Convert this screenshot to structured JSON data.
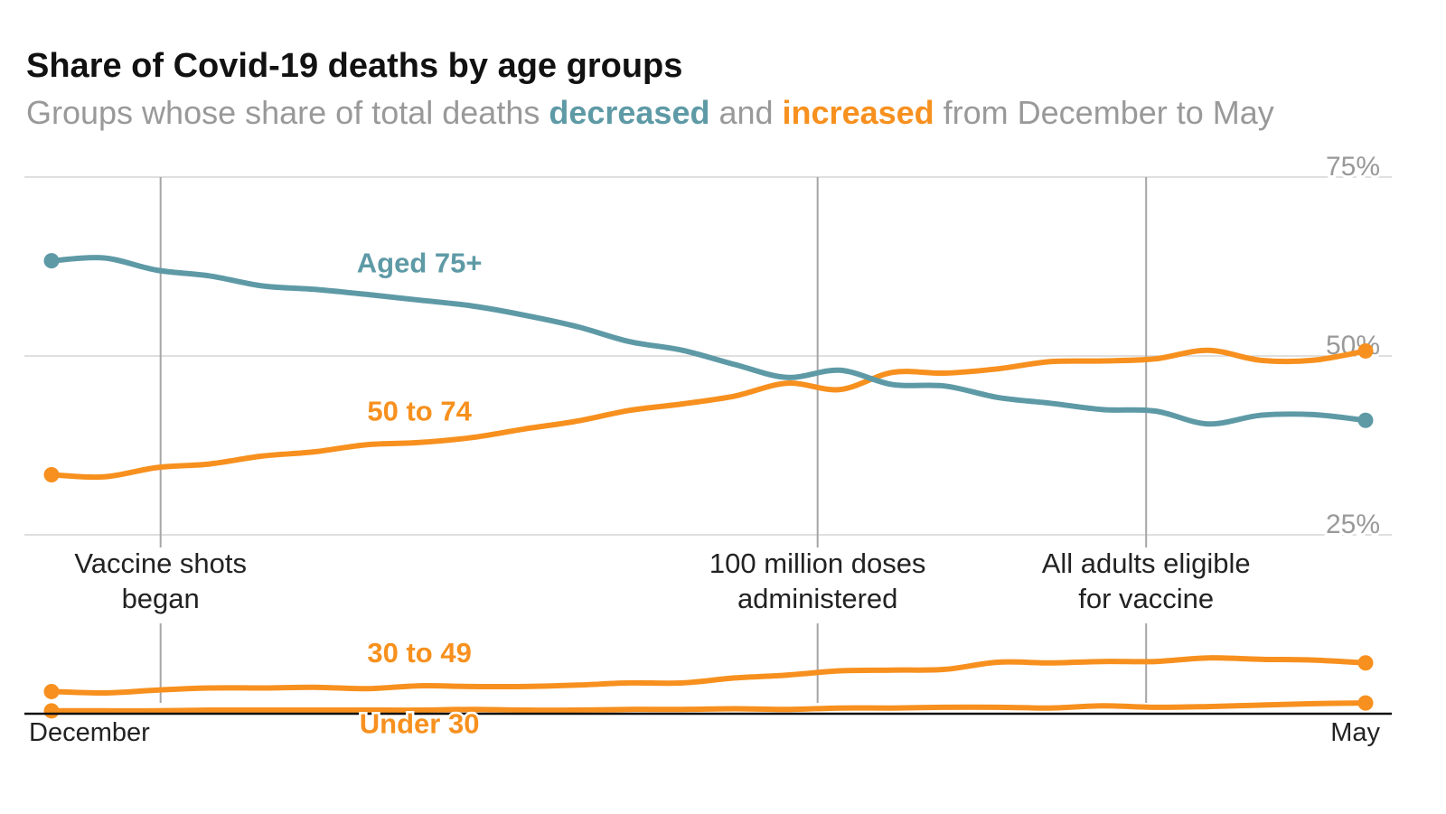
{
  "header": {
    "title": "Share of Covid-19 deaths by age groups",
    "subtitle_pre": "Groups whose share of total deaths ",
    "subtitle_decreased": "decreased",
    "subtitle_mid": " and ",
    "subtitle_increased": "increased",
    "subtitle_post": " from December to May"
  },
  "colors": {
    "decreased": "#5e9aa6",
    "increased": "#f7901e",
    "grid": "#cccccc",
    "annotation_line": "#a6a6a6",
    "axis": "#111111",
    "tick_label": "#999999"
  },
  "chart_data": {
    "type": "line",
    "title": "Share of Covid-19 deaths by age groups",
    "x_start_label": "December",
    "x_end_label": "May",
    "x": [
      0,
      2,
      4,
      6,
      8,
      10,
      12,
      14,
      16,
      18,
      20,
      22,
      24,
      26,
      28,
      30,
      32,
      34,
      36,
      38,
      40,
      42,
      44,
      46,
      48,
      50
    ],
    "xlim": [
      0,
      50
    ],
    "ylim": [
      0,
      75
    ],
    "y_ticks": [
      25,
      50,
      75
    ],
    "y_tick_labels": [
      "25%",
      "50%",
      "75%"
    ],
    "series": [
      {
        "name": "Aged 75+",
        "group": "decreased",
        "label_x": 14,
        "label_y": 61.7,
        "values": [
          63.3,
          63.7,
          62.0,
          61.2,
          59.8,
          59.3,
          58.6,
          57.8,
          57.0,
          55.7,
          54.1,
          52.0,
          50.8,
          48.8,
          47.0,
          48.0,
          46.0,
          45.8,
          44.2,
          43.4,
          42.5,
          42.3,
          40.5,
          41.7,
          41.8,
          41.0
        ]
      },
      {
        "name": "50 to 74",
        "group": "increased",
        "label_x": 14,
        "label_y": 41.0,
        "values": [
          33.4,
          33.1,
          34.4,
          34.9,
          36.0,
          36.6,
          37.6,
          37.9,
          38.6,
          39.8,
          40.9,
          42.4,
          43.3,
          44.4,
          46.2,
          45.3,
          47.7,
          47.6,
          48.2,
          49.2,
          49.3,
          49.6,
          50.8,
          49.4,
          49.4,
          50.7
        ]
      },
      {
        "name": "30 to 49",
        "group": "increased",
        "label_x": 14,
        "label_y": 7.2,
        "values": [
          3.1,
          2.9,
          3.3,
          3.6,
          3.6,
          3.7,
          3.5,
          3.9,
          3.8,
          3.8,
          4.0,
          4.3,
          4.3,
          5.0,
          5.4,
          6.0,
          6.1,
          6.2,
          7.2,
          7.1,
          7.3,
          7.3,
          7.8,
          7.6,
          7.5,
          7.1
        ]
      },
      {
        "name": "Under 30",
        "group": "increased",
        "label_x": 14,
        "label_y": -2.7,
        "values": [
          0.4,
          0.4,
          0.4,
          0.5,
          0.5,
          0.5,
          0.5,
          0.5,
          0.6,
          0.5,
          0.5,
          0.6,
          0.6,
          0.7,
          0.6,
          0.8,
          0.8,
          0.9,
          0.9,
          0.8,
          1.1,
          0.9,
          1.0,
          1.2,
          1.4,
          1.5
        ]
      }
    ],
    "annotations": [
      {
        "x": 4.15,
        "line1": "Vaccine shots",
        "line2": "began"
      },
      {
        "x": 29.15,
        "line1": "100 million doses",
        "line2": "administered"
      },
      {
        "x": 41.65,
        "line1": "All adults eligible",
        "line2": "for vaccine"
      }
    ]
  }
}
